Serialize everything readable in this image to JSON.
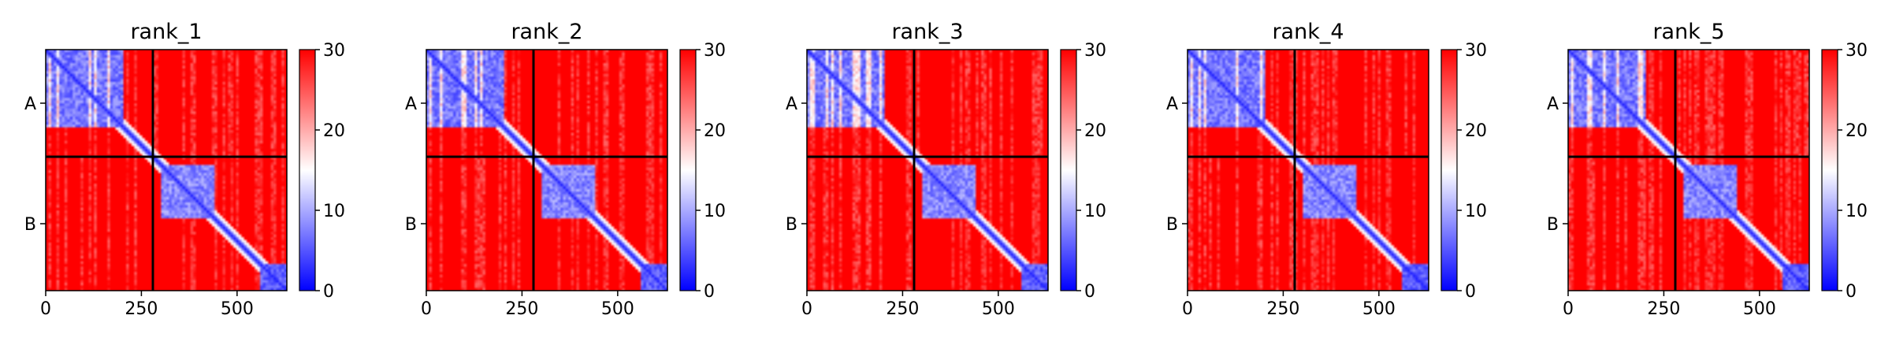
{
  "figure": {
    "colorbar": {
      "ticks": [
        0,
        10,
        20,
        30
      ],
      "colormap": [
        "#0000ff",
        "#ffffff",
        "#ff0000"
      ],
      "range": [
        0,
        30
      ]
    },
    "chain_labels": [
      "A",
      "B"
    ],
    "x_ticks": [
      0,
      250,
      500
    ]
  },
  "chart_data": [
    {
      "type": "heatmap",
      "title": "rank_1",
      "xlabel": "",
      "ylabel": "",
      "x_range": [
        0,
        630
      ],
      "chain_boundary": 280,
      "chains": [
        {
          "name": "A",
          "start": 0,
          "end": 280
        },
        {
          "name": "B",
          "start": 280,
          "end": 630
        }
      ],
      "color_range": [
        0,
        30
      ],
      "x_ticks": [
        0,
        250,
        500
      ],
      "colorbar_ticks": [
        0,
        10,
        20,
        30
      ]
    },
    {
      "type": "heatmap",
      "title": "rank_2",
      "xlabel": "",
      "ylabel": "",
      "x_range": [
        0,
        630
      ],
      "chain_boundary": 280,
      "chains": [
        {
          "name": "A",
          "start": 0,
          "end": 280
        },
        {
          "name": "B",
          "start": 280,
          "end": 630
        }
      ],
      "color_range": [
        0,
        30
      ],
      "x_ticks": [
        0,
        250,
        500
      ],
      "colorbar_ticks": [
        0,
        10,
        20,
        30
      ]
    },
    {
      "type": "heatmap",
      "title": "rank_3",
      "xlabel": "",
      "ylabel": "",
      "x_range": [
        0,
        630
      ],
      "chain_boundary": 280,
      "chains": [
        {
          "name": "A",
          "start": 0,
          "end": 280
        },
        {
          "name": "B",
          "start": 280,
          "end": 630
        }
      ],
      "color_range": [
        0,
        30
      ],
      "x_ticks": [
        0,
        250,
        500
      ],
      "colorbar_ticks": [
        0,
        10,
        20,
        30
      ]
    },
    {
      "type": "heatmap",
      "title": "rank_4",
      "xlabel": "",
      "ylabel": "",
      "x_range": [
        0,
        630
      ],
      "chain_boundary": 280,
      "chains": [
        {
          "name": "A",
          "start": 0,
          "end": 280
        },
        {
          "name": "B",
          "start": 280,
          "end": 630
        }
      ],
      "color_range": [
        0,
        30
      ],
      "x_ticks": [
        0,
        250,
        500
      ],
      "colorbar_ticks": [
        0,
        10,
        20,
        30
      ]
    },
    {
      "type": "heatmap",
      "title": "rank_5",
      "xlabel": "",
      "ylabel": "",
      "x_range": [
        0,
        630
      ],
      "chain_boundary": 280,
      "chains": [
        {
          "name": "A",
          "start": 0,
          "end": 280
        },
        {
          "name": "B",
          "start": 280,
          "end": 630
        }
      ],
      "color_range": [
        0,
        30
      ],
      "x_ticks": [
        0,
        250,
        500
      ],
      "colorbar_ticks": [
        0,
        10,
        20,
        30
      ]
    }
  ]
}
